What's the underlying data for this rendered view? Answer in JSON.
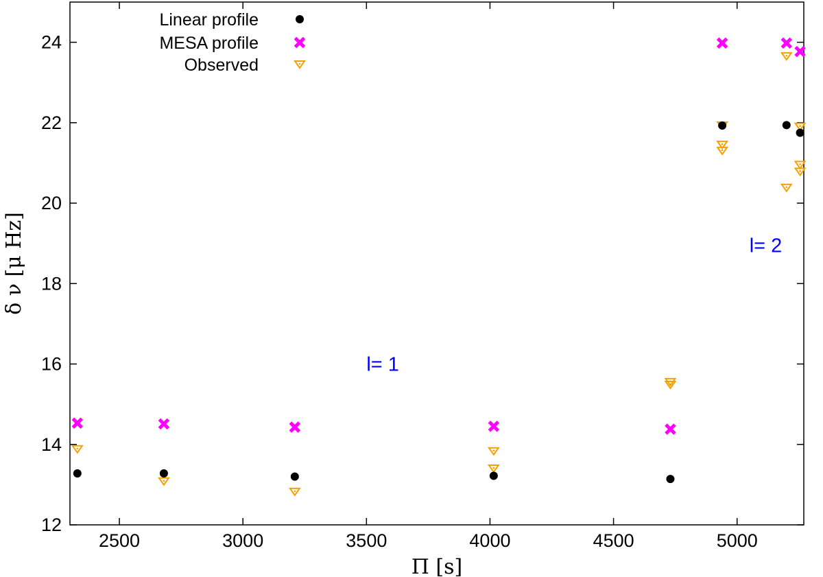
{
  "chart_data": {
    "type": "scatter",
    "title": "",
    "xlabel": "Π [s]",
    "ylabel": "δ ν [μ Hz]",
    "xlim": [
      2300,
      5270
    ],
    "ylim": [
      12,
      25
    ],
    "x_ticks": [
      2500,
      3000,
      3500,
      4000,
      4500,
      5000
    ],
    "y_ticks": [
      12,
      14,
      16,
      18,
      20,
      22,
      24
    ],
    "grid": false,
    "legend_position": "top-left",
    "series": [
      {
        "name": "Linear profile",
        "marker": "filled-circle",
        "color": "#000000",
        "points": [
          [
            2330,
            13.28
          ],
          [
            2680,
            13.28
          ],
          [
            3210,
            13.2
          ],
          [
            4015,
            13.22
          ],
          [
            4730,
            13.14
          ],
          [
            4940,
            21.93
          ],
          [
            5200,
            21.94
          ],
          [
            5255,
            21.75
          ]
        ]
      },
      {
        "name": "MESA profile",
        "marker": "x",
        "color": "#ff00ff",
        "points": [
          [
            2330,
            14.53
          ],
          [
            2680,
            14.51
          ],
          [
            3210,
            14.43
          ],
          [
            4015,
            14.45
          ],
          [
            4730,
            14.38
          ],
          [
            4940,
            23.98
          ],
          [
            5200,
            23.98
          ],
          [
            5255,
            23.77
          ]
        ]
      },
      {
        "name": "Observed",
        "marker": "open-triangle-down",
        "color": "#f5a000",
        "points": [
          [
            2330,
            13.88
          ],
          [
            2680,
            13.08
          ],
          [
            3210,
            12.82
          ],
          [
            4015,
            13.83
          ],
          [
            4015,
            13.4
          ],
          [
            4730,
            15.55
          ],
          [
            4730,
            15.48
          ],
          [
            4940,
            21.93
          ],
          [
            4940,
            21.45
          ],
          [
            4940,
            21.3
          ],
          [
            5200,
            23.65
          ],
          [
            5200,
            20.38
          ],
          [
            5255,
            21.9
          ],
          [
            5255,
            20.95
          ],
          [
            5255,
            20.78
          ]
        ]
      }
    ],
    "annotations": [
      {
        "text": "l= 1",
        "x": 3500,
        "y": 16.0,
        "color": "#0000ff"
      },
      {
        "text": "l= 2",
        "x": 5050,
        "y": 18.95,
        "color": "#0000ff"
      }
    ]
  }
}
